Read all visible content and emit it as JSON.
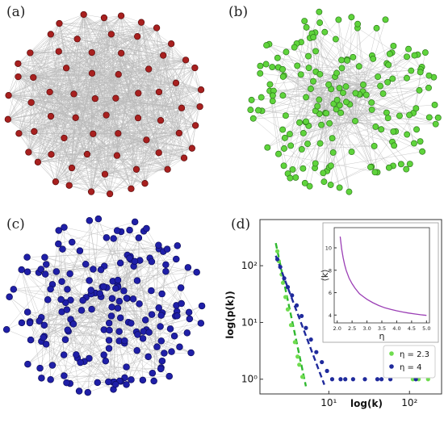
{
  "panels": {
    "a": {
      "label": "(a)",
      "node_color": "#a8201f",
      "node_stroke": "#5a0c0c"
    },
    "b": {
      "label": "(b)",
      "node_color": "#5fd43c",
      "node_stroke": "#2f7a1c"
    },
    "c": {
      "label": "(c)",
      "node_color": "#1f1fa8",
      "node_stroke": "#0d0d5c"
    },
    "d": {
      "label": "(d)"
    }
  },
  "edge_color": "#b9b9b9",
  "chart_data": [
    {
      "type": "scatter",
      "xlabel": "log(k)",
      "ylabel": "log(p(k))",
      "xscale": "log",
      "yscale": "log",
      "x_ticks": [
        {
          "value": 10,
          "label": "10¹"
        },
        {
          "value": 100,
          "label": "10²"
        }
      ],
      "y_ticks": [
        {
          "value": 1,
          "label": "10⁰"
        },
        {
          "value": 10,
          "label": "10¹"
        },
        {
          "value": 100,
          "label": "10²"
        }
      ],
      "xlim": [
        1.4,
        250
      ],
      "ylim": [
        0.55,
        650
      ],
      "legend_position": "bottom-right",
      "series": [
        {
          "name": "η = 2.3",
          "color": "#6fdc4f",
          "fit_color": "#2fb82f",
          "points": [
            [
              2.3,
              180
            ],
            [
              2.4,
              120
            ],
            [
              2.6,
              70
            ],
            [
              2.7,
              50
            ],
            [
              2.9,
              28
            ],
            [
              3.1,
              17
            ],
            [
              3.4,
              9
            ],
            [
              3.8,
              4.5
            ],
            [
              4.1,
              2.5
            ],
            [
              4.3,
              1.8
            ],
            [
              4.7,
              1.1
            ],
            [
              110,
              1
            ],
            [
              130,
              1
            ],
            [
              170,
              1
            ]
          ],
          "fit": [
            [
              2.2,
              250
            ],
            [
              5.2,
              0.75
            ]
          ]
        },
        {
          "name": "η = 4",
          "color": "#1f2a9c",
          "fit_color": "#1f2a9c",
          "points": [
            [
              2.3,
              130
            ],
            [
              2.5,
              95
            ],
            [
              2.8,
              60
            ],
            [
              3.1,
              42
            ],
            [
              3.5,
              30
            ],
            [
              4,
              20
            ],
            [
              4.6,
              13
            ],
            [
              5.2,
              8
            ],
            [
              6,
              5
            ],
            [
              7,
              3
            ],
            [
              8.2,
              2
            ],
            [
              9.5,
              1.4
            ],
            [
              11,
              1
            ],
            [
              14,
              1
            ],
            [
              16,
              1
            ],
            [
              20,
              1
            ],
            [
              28,
              1
            ],
            [
              40,
              1
            ],
            [
              45,
              1
            ],
            [
              58,
              1
            ],
            [
              120,
              1
            ]
          ],
          "fit": [
            [
              2.2,
              150
            ],
            [
              8.8,
              0.8
            ]
          ]
        }
      ]
    },
    {
      "type": "line",
      "xlabel": "η",
      "ylabel": "⟨k⟩",
      "x_ticks": [
        2.0,
        2.5,
        3.0,
        3.5,
        4.0,
        4.5,
        5.0
      ],
      "x_tick_labels": [
        "2.0",
        "2.5",
        "3.0",
        "3.5",
        "4.0",
        "4.5",
        "5.0"
      ],
      "y_ticks": [
        4,
        6,
        8,
        10
      ],
      "y_tick_labels": [
        "4",
        "6",
        "8",
        "10"
      ],
      "xlim": [
        1.9,
        5.1
      ],
      "ylim": [
        3.3,
        11.8
      ],
      "color": "#9b3fb5",
      "x": [
        2.1,
        2.15,
        2.2,
        2.25,
        2.3,
        2.4,
        2.5,
        2.6,
        2.75,
        2.9,
        3.0,
        3.2,
        3.4,
        3.6,
        3.8,
        4.0,
        4.2,
        4.4,
        4.6,
        4.8,
        5.0
      ],
      "y": [
        11.0,
        9.9,
        9.1,
        8.5,
        8.0,
        7.3,
        6.8,
        6.4,
        5.9,
        5.6,
        5.4,
        5.1,
        4.85,
        4.65,
        4.5,
        4.38,
        4.27,
        4.18,
        4.1,
        4.03,
        3.97
      ]
    }
  ]
}
